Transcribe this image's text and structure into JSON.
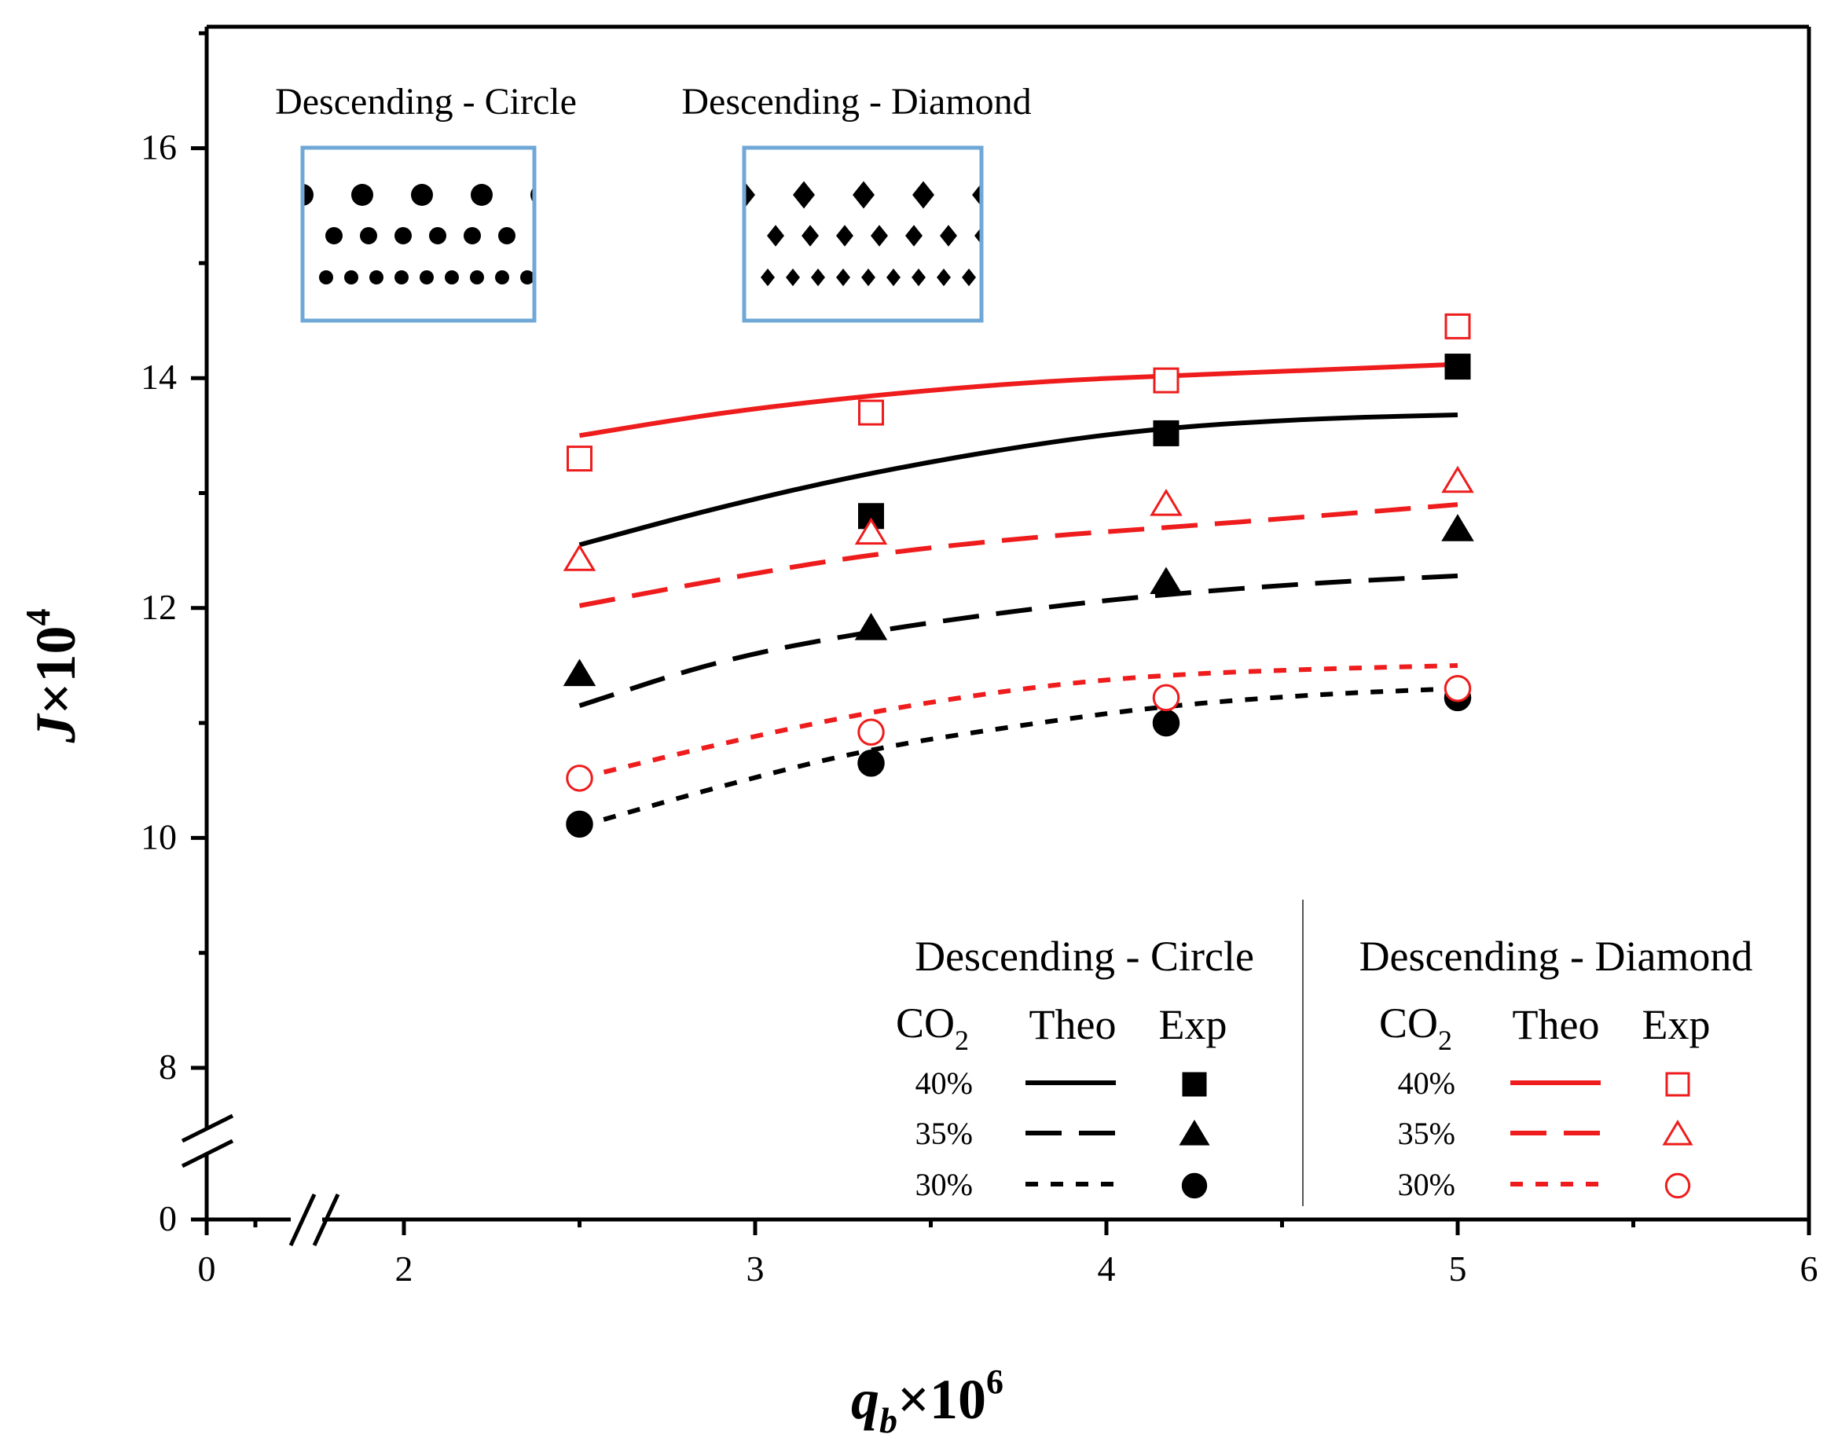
{
  "chart_data": {
    "type": "line",
    "xlabel": {
      "main": "q",
      "sub": "b",
      "times": "×10",
      "sup": "6"
    },
    "ylabel": {
      "main": "J",
      "times": "×10",
      "sup": "4"
    },
    "xlim": [
      1.5,
      6
    ],
    "ylim": [
      7.3,
      17
    ],
    "x_ticks": [
      {
        "value": 2,
        "label": "2"
      },
      {
        "value": 3,
        "label": "3"
      },
      {
        "value": 4,
        "label": "4"
      },
      {
        "value": 5,
        "label": "5"
      },
      {
        "value": 6,
        "label": "6"
      }
    ],
    "x_zero_label": "0",
    "y_ticks": [
      {
        "value": 8,
        "label": "8"
      },
      {
        "value": 10,
        "label": "10"
      },
      {
        "value": 12,
        "label": "12"
      },
      {
        "value": 14,
        "label": "14"
      },
      {
        "value": 16,
        "label": "16"
      }
    ],
    "y_zero_label": "0",
    "axis_break": true,
    "colors": {
      "circle": "#000000",
      "diamond": "#ee1c1c",
      "inset_border": "#6fa8d6"
    },
    "theo_x": [
      2.5,
      2.9,
      3.33,
      3.8,
      4.17,
      4.6,
      5.0
    ],
    "series": [
      {
        "name": "Descending - Circle 40% Theo",
        "group": "circle",
        "style": "solid",
        "co2": "40%",
        "y": [
          12.55,
          12.88,
          13.18,
          13.43,
          13.57,
          13.65,
          13.68
        ]
      },
      {
        "name": "Descending - Circle 35% Theo",
        "group": "circle",
        "style": "dash",
        "co2": "35%",
        "y": [
          11.15,
          11.55,
          11.8,
          12.0,
          12.12,
          12.22,
          12.28
        ]
      },
      {
        "name": "Descending - Circle 30% Theo",
        "group": "circle",
        "style": "dot",
        "co2": "30%",
        "y": [
          10.1,
          10.45,
          10.78,
          11.0,
          11.15,
          11.25,
          11.3
        ]
      },
      {
        "name": "Descending - Diamond 40% Theo",
        "group": "diamond",
        "style": "solid",
        "co2": "40%",
        "y": [
          13.5,
          13.7,
          13.85,
          13.97,
          14.02,
          14.07,
          14.12
        ]
      },
      {
        "name": "Descending - Diamond 35% Theo",
        "group": "diamond",
        "style": "dash",
        "co2": "35%",
        "y": [
          12.02,
          12.25,
          12.47,
          12.62,
          12.7,
          12.8,
          12.9
        ]
      },
      {
        "name": "Descending - Diamond 30% Theo",
        "group": "diamond",
        "style": "dot",
        "co2": "30%",
        "y": [
          10.52,
          10.82,
          11.1,
          11.32,
          11.42,
          11.47,
          11.5
        ]
      }
    ],
    "experiments": [
      {
        "name": "Descending - Circle 40% Exp",
        "group": "circle",
        "marker": "square",
        "filled": true,
        "x": [
          3.33,
          4.17,
          5.0
        ],
        "y": [
          12.8,
          13.52,
          14.1
        ]
      },
      {
        "name": "Descending - Circle 35% Exp",
        "group": "circle",
        "marker": "triangle",
        "filled": true,
        "x": [
          2.5,
          3.33,
          4.17,
          5.0
        ],
        "y": [
          11.42,
          11.82,
          12.22,
          12.68
        ]
      },
      {
        "name": "Descending - Circle 30% Exp",
        "group": "circle",
        "marker": "circle",
        "filled": true,
        "x": [
          2.5,
          3.33,
          4.17,
          5.0
        ],
        "y": [
          10.12,
          10.65,
          11.0,
          11.22
        ]
      },
      {
        "name": "Descending - Diamond 40% Exp",
        "group": "diamond",
        "marker": "square",
        "filled": false,
        "x": [
          2.5,
          3.33,
          4.17,
          5.0
        ],
        "y": [
          13.3,
          13.7,
          13.98,
          14.45
        ]
      },
      {
        "name": "Descending - Diamond 35% Exp",
        "group": "diamond",
        "marker": "triangle",
        "filled": false,
        "x": [
          2.5,
          3.33,
          4.17,
          5.0
        ],
        "y": [
          12.42,
          12.65,
          12.9,
          13.1
        ]
      },
      {
        "name": "Descending - Diamond 30% Exp",
        "group": "diamond",
        "marker": "circle",
        "filled": false,
        "x": [
          2.5,
          3.33,
          4.17,
          5.0
        ],
        "y": [
          10.52,
          10.92,
          11.22,
          11.3
        ]
      }
    ],
    "insets": [
      {
        "title": "Descending - Circle",
        "shape": "circle"
      },
      {
        "title": "Descending - Diamond",
        "shape": "diamond"
      }
    ],
    "legend": {
      "position": "bottom-right",
      "groups": [
        {
          "title": "Descending - Circle",
          "co2_label": "CO",
          "co2_sub": "2",
          "theo_label": "Theo",
          "exp_label": "Exp",
          "rows": [
            "40%",
            "35%",
            "30%"
          ]
        },
        {
          "title": "Descending - Diamond",
          "co2_label": "CO",
          "co2_sub": "2",
          "theo_label": "Theo",
          "exp_label": "Exp",
          "rows": [
            "40%",
            "35%",
            "30%"
          ]
        }
      ]
    }
  }
}
